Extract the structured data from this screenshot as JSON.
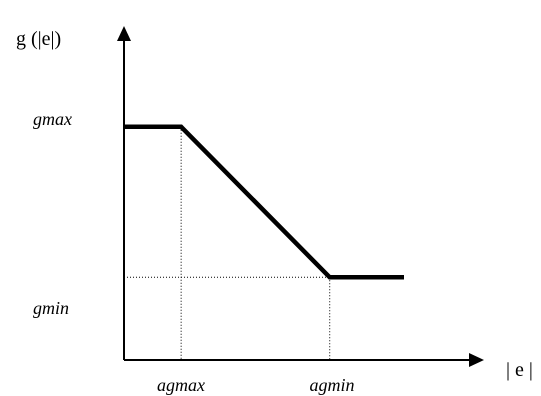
{
  "chart_data": {
    "type": "line",
    "y_axis_label": "g (|e|)",
    "x_axis_label": "| e |",
    "y_ticks": [
      "gmax",
      "gmin"
    ],
    "x_ticks": [
      "agmax",
      "agmin"
    ],
    "x": [
      0,
      1,
      3.6,
      4.9
    ],
    "y": [
      1,
      1,
      0,
      0
    ],
    "xlim": [
      0,
      6.3
    ],
    "ylim": [
      -0.55,
      1.67
    ],
    "grid": false,
    "guides": "dotted reference lines at agmax, agmin, gmin"
  }
}
